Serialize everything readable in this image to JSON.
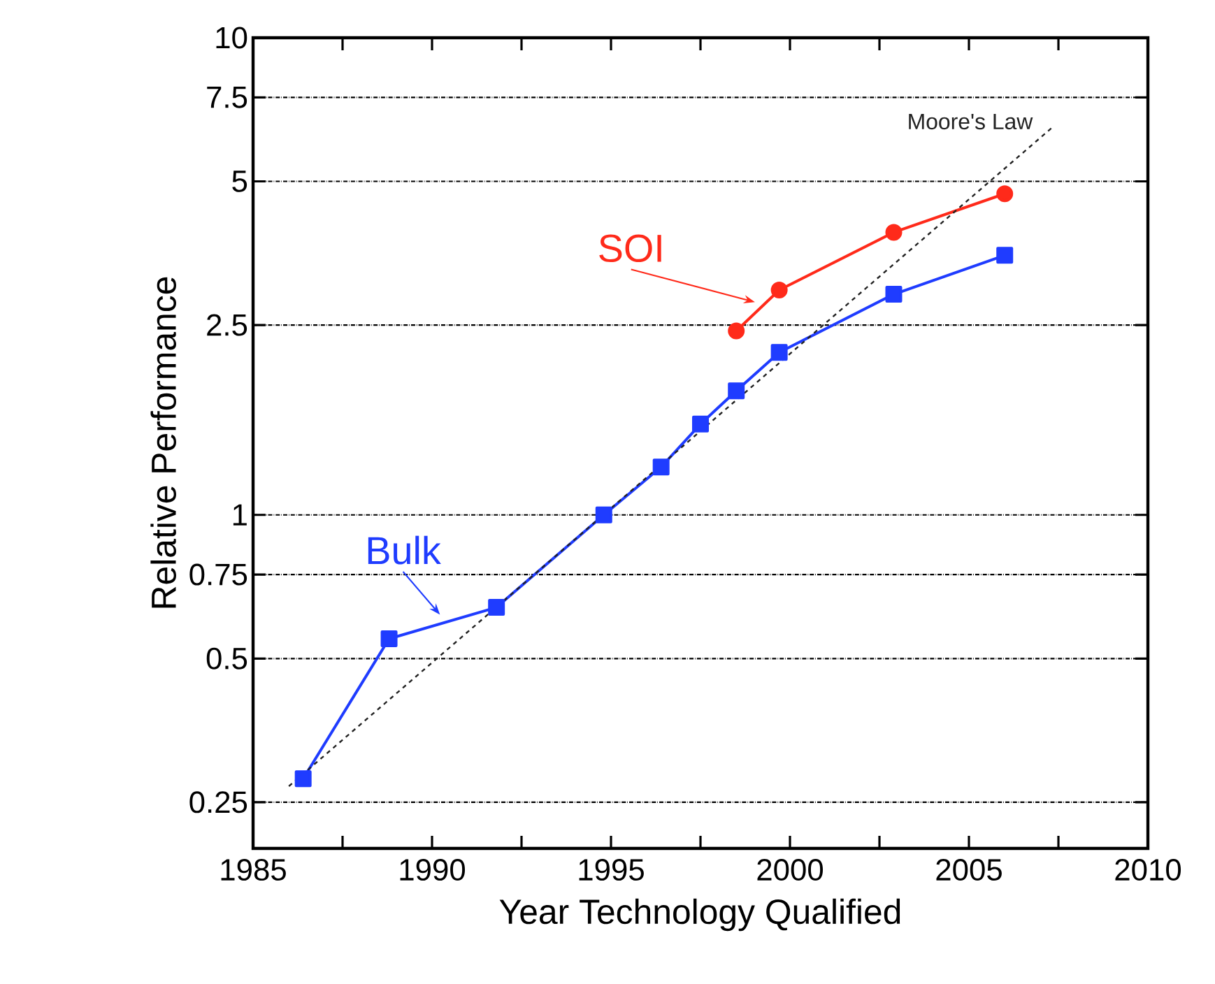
{
  "chart_data": {
    "type": "line",
    "xlabel": "Year Technology Qualified",
    "ylabel": "Relative Performance",
    "xlim": [
      1985,
      2010
    ],
    "xticks": [
      1985,
      {
        "value": 1987.5,
        "label": null
      },
      1990,
      {
        "value": 1992.5,
        "label": null
      },
      1995,
      {
        "value": 1997.5,
        "label": null
      },
      2000,
      {
        "value": 2002.5,
        "label": null
      },
      2005,
      {
        "value": 2007.5,
        "label": null
      },
      2010
    ],
    "ylim": [
      0.2,
      10
    ],
    "yticks": [
      0.25,
      0.5,
      0.75,
      1,
      2.5,
      5,
      7.5,
      10
    ],
    "log": "y",
    "grid": "y",
    "legend": false,
    "series": [
      {
        "name": "Bulk",
        "color": "#1f3cff",
        "marker": "square",
        "line_style": "solid",
        "x": [
          1986.4,
          1988.8,
          1991.8,
          1994.8,
          1996.4,
          1997.5,
          1998.5,
          1999.7,
          2002.9,
          2006.0
        ],
        "values": [
          0.28,
          0.55,
          0.64,
          1.0,
          1.26,
          1.55,
          1.82,
          2.19,
          2.9,
          3.5
        ]
      },
      {
        "name": "SOI",
        "color": "#ff2a1a",
        "marker": "circle",
        "line_style": "solid",
        "x": [
          1998.5,
          1999.7,
          2002.9,
          2006.0
        ],
        "values": [
          2.43,
          2.96,
          3.91,
          4.71
        ]
      },
      {
        "name": "Moore's Law",
        "color": "#222222",
        "marker": "none",
        "line_style": "dashed",
        "x": [
          1986.0,
          2007.3
        ],
        "values": [
          0.27,
          6.46
        ]
      }
    ]
  }
}
